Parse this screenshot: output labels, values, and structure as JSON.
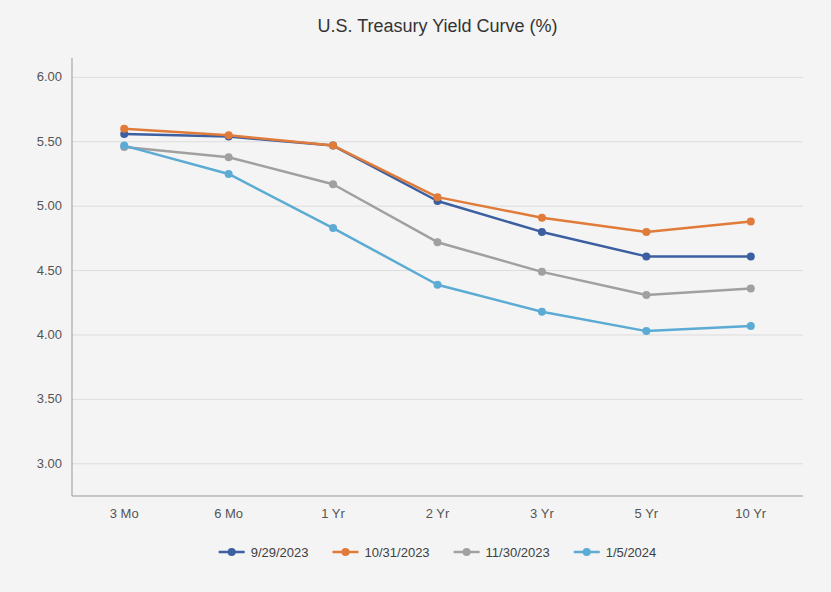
{
  "chart_data": {
    "type": "line",
    "title": "U.S. Treasury Yield Curve (%)",
    "categories": [
      "3 Mo",
      "6 Mo",
      "1 Yr",
      "2 Yr",
      "3 Yr",
      "5 Yr",
      "10 Yr"
    ],
    "series": [
      {
        "name": "9/29/2023",
        "color": "#3b5fa0",
        "values": [
          5.56,
          5.54,
          5.47,
          5.04,
          4.8,
          4.61,
          4.61
        ]
      },
      {
        "name": "10/31/2023",
        "color": "#e07b39",
        "values": [
          5.6,
          5.55,
          5.47,
          5.07,
          4.91,
          4.8,
          4.88
        ]
      },
      {
        "name": "11/30/2023",
        "color": "#a0a0a0",
        "values": [
          5.46,
          5.38,
          5.17,
          4.72,
          4.49,
          4.31,
          4.36
        ]
      },
      {
        "name": "1/5/2024",
        "color": "#5babd4",
        "values": [
          5.47,
          5.25,
          4.83,
          4.39,
          4.18,
          4.03,
          4.07
        ]
      }
    ],
    "ylim": [
      2.75,
      6.15
    ],
    "yticks": [
      {
        "value": 3.0,
        "label": "3.00"
      },
      {
        "value": 3.5,
        "label": "3.50"
      },
      {
        "value": 4.0,
        "label": "4.00"
      },
      {
        "value": 4.5,
        "label": "4.50"
      },
      {
        "value": 5.0,
        "label": "5.00"
      },
      {
        "value": 5.5,
        "label": "5.50"
      },
      {
        "value": 6.0,
        "label": "6.00"
      }
    ],
    "grid": true,
    "legend": "bottom",
    "marker": "circle"
  }
}
